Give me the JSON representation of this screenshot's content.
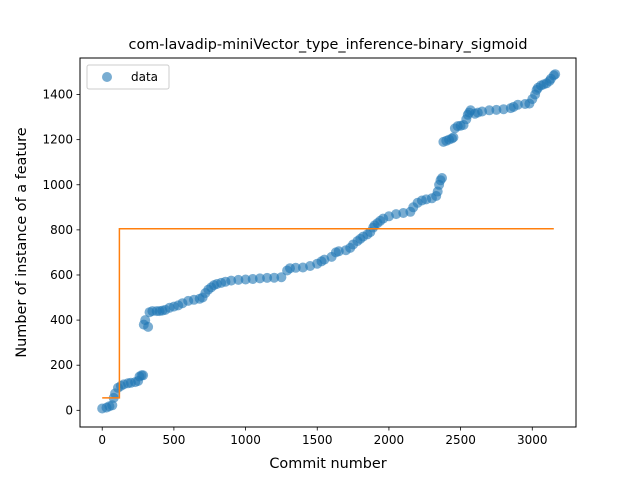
{
  "chart_data": {
    "type": "scatter",
    "title": "com-lavadip-miniVector_type_inference-binary_sigmoid",
    "xlabel": "Commit number",
    "ylabel": "Number of instance of a feature",
    "xlim": [
      -155,
      3305
    ],
    "ylim": [
      -74,
      1562
    ],
    "xticks": [
      0,
      500,
      1000,
      1500,
      2000,
      2500,
      3000
    ],
    "yticks": [
      0,
      200,
      400,
      600,
      800,
      1000,
      1200,
      1400
    ],
    "grid": false,
    "legend": {
      "placement": "top-left",
      "entries": [
        "data"
      ]
    },
    "colors": {
      "data": "#1f77b4",
      "fit": "#ff7f0e"
    },
    "series": [
      {
        "name": "data",
        "kind": "scatter",
        "points": [
          [
            0,
            8
          ],
          [
            30,
            12
          ],
          [
            50,
            18
          ],
          [
            70,
            22
          ],
          [
            80,
            55
          ],
          [
            90,
            75
          ],
          [
            110,
            100
          ],
          [
            130,
            108
          ],
          [
            150,
            115
          ],
          [
            180,
            120
          ],
          [
            200,
            122
          ],
          [
            230,
            125
          ],
          [
            250,
            130
          ],
          [
            260,
            150
          ],
          [
            275,
            155
          ],
          [
            285,
            155
          ],
          [
            290,
            380
          ],
          [
            300,
            400
          ],
          [
            320,
            370
          ],
          [
            330,
            435
          ],
          [
            350,
            440
          ],
          [
            380,
            440
          ],
          [
            400,
            440
          ],
          [
            420,
            442
          ],
          [
            440,
            445
          ],
          [
            470,
            455
          ],
          [
            500,
            460
          ],
          [
            530,
            465
          ],
          [
            560,
            475
          ],
          [
            600,
            485
          ],
          [
            640,
            490
          ],
          [
            680,
            495
          ],
          [
            700,
            500
          ],
          [
            720,
            520
          ],
          [
            740,
            535
          ],
          [
            760,
            545
          ],
          [
            780,
            555
          ],
          [
            800,
            560
          ],
          [
            830,
            565
          ],
          [
            860,
            570
          ],
          [
            900,
            575
          ],
          [
            950,
            578
          ],
          [
            1000,
            580
          ],
          [
            1050,
            582
          ],
          [
            1100,
            585
          ],
          [
            1150,
            587
          ],
          [
            1200,
            588
          ],
          [
            1250,
            590
          ],
          [
            1290,
            620
          ],
          [
            1310,
            630
          ],
          [
            1350,
            632
          ],
          [
            1400,
            633
          ],
          [
            1450,
            640
          ],
          [
            1500,
            650
          ],
          [
            1530,
            660
          ],
          [
            1550,
            668
          ],
          [
            1600,
            680
          ],
          [
            1630,
            700
          ],
          [
            1650,
            705
          ],
          [
            1700,
            710
          ],
          [
            1730,
            720
          ],
          [
            1750,
            735
          ],
          [
            1780,
            750
          ],
          [
            1800,
            760
          ],
          [
            1820,
            770
          ],
          [
            1850,
            780
          ],
          [
            1870,
            790
          ],
          [
            1890,
            810
          ],
          [
            1900,
            820
          ],
          [
            1920,
            830
          ],
          [
            1940,
            840
          ],
          [
            1960,
            850
          ],
          [
            2000,
            860
          ],
          [
            2050,
            870
          ],
          [
            2100,
            875
          ],
          [
            2150,
            880
          ],
          [
            2170,
            900
          ],
          [
            2200,
            920
          ],
          [
            2230,
            930
          ],
          [
            2260,
            935
          ],
          [
            2300,
            940
          ],
          [
            2330,
            950
          ],
          [
            2340,
            970
          ],
          [
            2350,
            1000
          ],
          [
            2360,
            1020
          ],
          [
            2370,
            1030
          ],
          [
            2380,
            1190
          ],
          [
            2400,
            1195
          ],
          [
            2420,
            1200
          ],
          [
            2440,
            1205
          ],
          [
            2450,
            1210
          ],
          [
            2460,
            1250
          ],
          [
            2480,
            1260
          ],
          [
            2500,
            1262
          ],
          [
            2520,
            1265
          ],
          [
            2540,
            1290
          ],
          [
            2550,
            1310
          ],
          [
            2560,
            1320
          ],
          [
            2570,
            1330
          ],
          [
            2600,
            1315
          ],
          [
            2620,
            1320
          ],
          [
            2650,
            1325
          ],
          [
            2700,
            1330
          ],
          [
            2750,
            1332
          ],
          [
            2800,
            1335
          ],
          [
            2850,
            1340
          ],
          [
            2870,
            1345
          ],
          [
            2900,
            1355
          ],
          [
            2950,
            1358
          ],
          [
            2980,
            1360
          ],
          [
            3000,
            1380
          ],
          [
            3020,
            1400
          ],
          [
            3030,
            1420
          ],
          [
            3040,
            1430
          ],
          [
            3060,
            1440
          ],
          [
            3080,
            1445
          ],
          [
            3100,
            1450
          ],
          [
            3120,
            1460
          ],
          [
            3130,
            1470
          ],
          [
            3150,
            1485
          ],
          [
            3160,
            1490
          ]
        ]
      },
      {
        "kind": "line",
        "points": [
          [
            0,
            55
          ],
          [
            120,
            55
          ],
          [
            120,
            805
          ],
          [
            3150,
            805
          ]
        ]
      }
    ]
  }
}
